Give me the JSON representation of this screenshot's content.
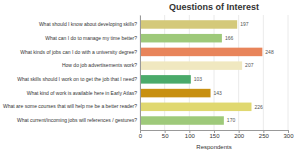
{
  "chart_data": {
    "type": "bar",
    "orientation": "horizontal",
    "title": "Questions of Interest",
    "xlabel": "Respondents",
    "categories": [
      "What should I know about developing skills?",
      "What can I do to manage my time better?",
      "What kinds of jobs can I do with a university degree?",
      "How do job advertisements work?",
      "What skills should I work on to get the job that I need?",
      "What kind of work is available here in Early Atlas?",
      "What are some courses that will help me be a better reader?",
      "What current/incoming jobs will references / gestures?"
    ],
    "values": [
      197,
      166,
      248,
      207,
      103,
      143,
      226,
      170
    ],
    "colors": [
      "#d4c97a",
      "#9ec97a",
      "#e8845a",
      "#f0e8c0",
      "#4aaa6a",
      "#c89010",
      "#e0d870",
      "#9ec97a"
    ],
    "xlim": [
      0,
      300
    ],
    "xticks": [
      0,
      50,
      100,
      150,
      200,
      250,
      300
    ],
    "grid": true,
    "data_labels": true
  }
}
